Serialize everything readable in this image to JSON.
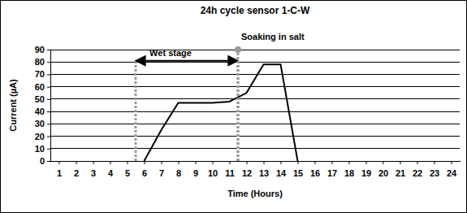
{
  "chart_data": {
    "type": "line",
    "title": "24h cycle sensor 1-C-W",
    "x_label": "Time (Hours)",
    "y_label": "Current (µA)",
    "x": [
      1,
      2,
      3,
      4,
      5,
      6,
      7,
      8,
      9,
      10,
      11,
      12,
      13,
      14,
      15,
      16,
      17,
      18,
      19,
      20,
      21,
      22,
      23,
      24
    ],
    "values": [
      null,
      null,
      null,
      null,
      null,
      0,
      25,
      47,
      47,
      47,
      48,
      55,
      78,
      78,
      0,
      null,
      null,
      null,
      null,
      null,
      null,
      null,
      null,
      null
    ],
    "color": "#000000",
    "xlim": [
      0.5,
      24.5
    ],
    "xticks": [
      1,
      2,
      3,
      4,
      5,
      6,
      7,
      8,
      9,
      10,
      11,
      12,
      13,
      14,
      15,
      16,
      17,
      18,
      19,
      20,
      21,
      22,
      23,
      24
    ],
    "ylim": [
      0,
      90
    ],
    "yticks": [
      0,
      10,
      20,
      30,
      40,
      50,
      60,
      70,
      80,
      90
    ],
    "grid": true,
    "annotations": [
      {
        "text": "Wet stage",
        "x": [
          5.5,
          11.5
        ],
        "y": 81,
        "marker": "double-arrow",
        "color": "#999999"
      },
      {
        "text": "Soaking in salt",
        "x": 11.5,
        "y": 90,
        "marker": "circle",
        "color": "#999999"
      }
    ]
  }
}
